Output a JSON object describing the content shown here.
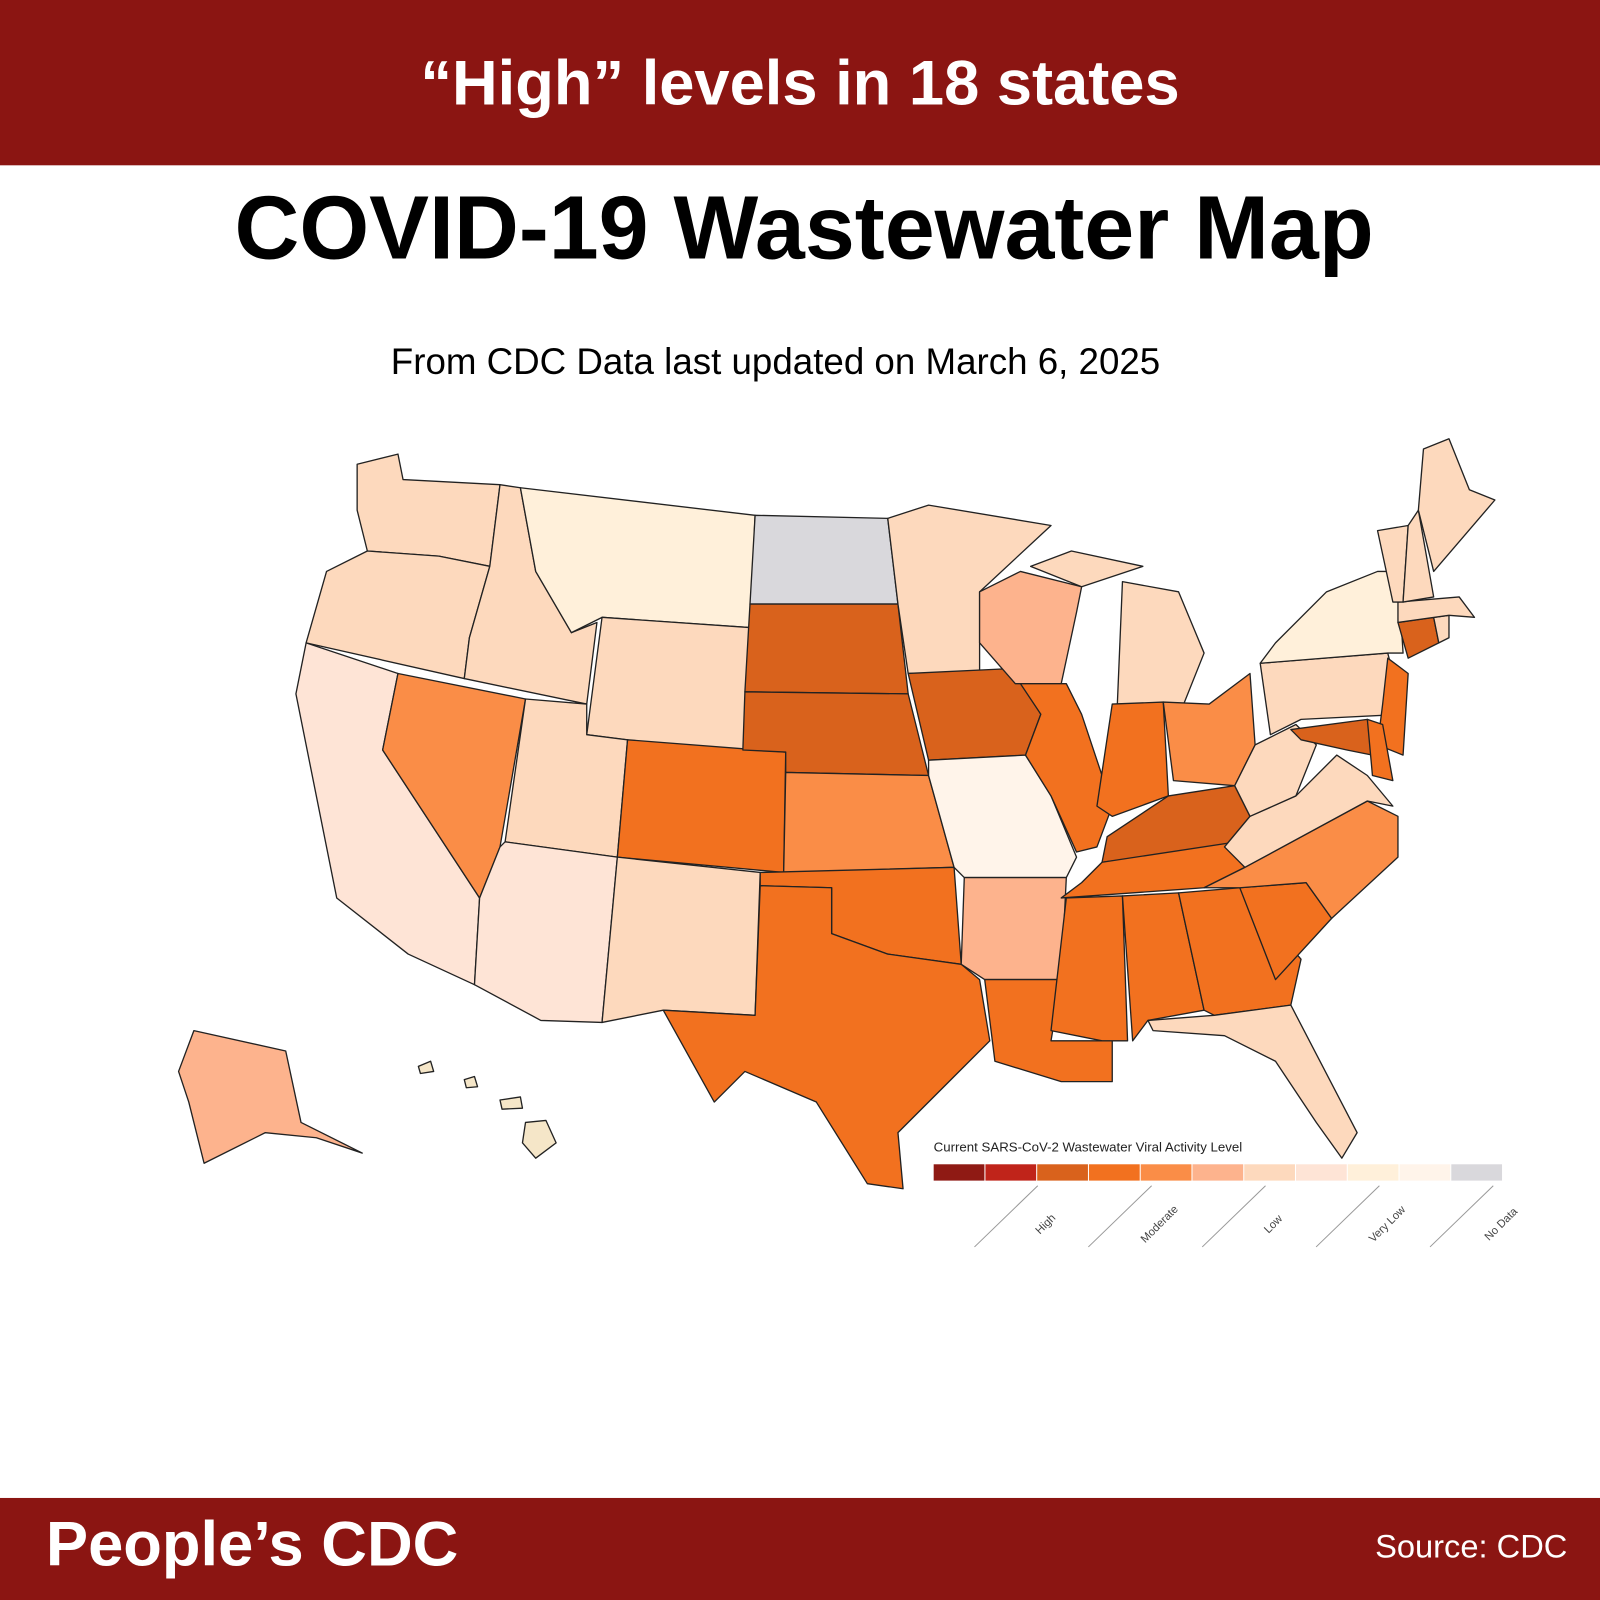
{
  "header": {
    "title": "“High” levels in 18 states"
  },
  "map": {
    "title": "COVID-19 Wastewater Map",
    "subtitle": "From CDC Data last updated on March 6, 2025"
  },
  "legend": {
    "title": "Current SARS-CoV-2 Wastewater Viral Activity Level",
    "colors": [
      "#8f1a14",
      "#c0241a",
      "#d9621c",
      "#f2711f",
      "#fa8d47",
      "#fdb38d",
      "#fdd9bd",
      "#fee4d6",
      "#fff0da",
      "#fff4ea",
      "#d9d8dc"
    ],
    "labels": [
      "High",
      "Moderate",
      "Low",
      "Very Low",
      "No Data"
    ]
  },
  "footer": {
    "brand": "People’s CDC",
    "source": "Source: CDC"
  }
}
